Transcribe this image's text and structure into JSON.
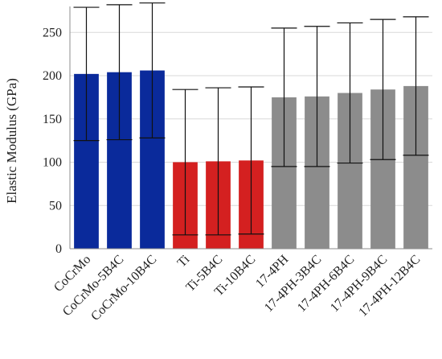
{
  "chart_data": {
    "type": "bar",
    "title": "",
    "xlabel": "",
    "ylabel": "Elastic Modulus (GPa)",
    "ylim": [
      0,
      280
    ],
    "yticks": [
      0,
      50,
      100,
      150,
      200,
      250
    ],
    "grid": true,
    "categories": [
      "CoCrMo",
      "CoCrMo-5B4C",
      "CoCrMo-10B4C",
      "Ti",
      "Ti-5B4C",
      "Ti-10B4C",
      "17-4PH",
      "17-4PH-3B4C",
      "17-4PH-6B4C",
      "17-4PH-9B4C",
      "17-4PH-12B4C"
    ],
    "values": [
      202,
      204,
      206,
      100,
      101,
      102,
      175,
      176,
      180,
      184,
      188
    ],
    "error": [
      77,
      78,
      78,
      84,
      85,
      85,
      80,
      81,
      81,
      81,
      80
    ],
    "colors": [
      "#0a2a9b",
      "#0a2a9b",
      "#0a2a9b",
      "#d42020",
      "#d42020",
      "#d42020",
      "#8c8c8c",
      "#8c8c8c",
      "#8c8c8c",
      "#8c8c8c",
      "#8c8c8c"
    ]
  }
}
